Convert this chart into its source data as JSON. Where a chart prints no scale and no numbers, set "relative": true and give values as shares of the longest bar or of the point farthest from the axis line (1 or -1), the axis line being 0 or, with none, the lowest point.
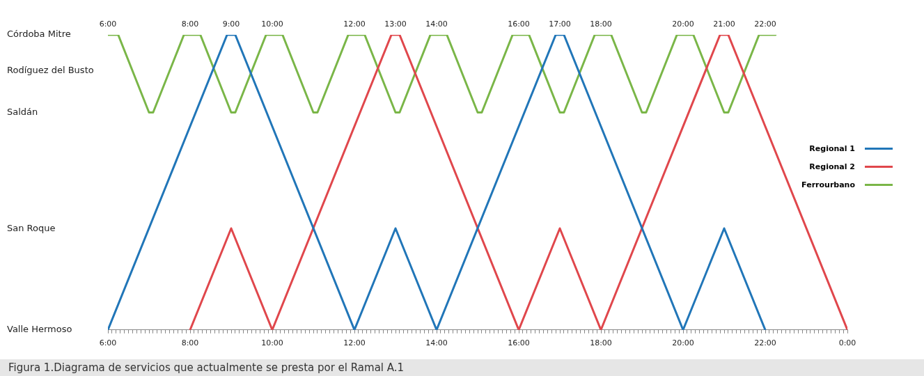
{
  "chart_data": {
    "type": "line",
    "marker": "none",
    "legend": "right",
    "grid": false,
    "relative": true,
    "xlim": [
      6,
      24
    ],
    "xticks": [
      {
        "value": 6,
        "label": "6:00"
      },
      {
        "value": 6.1,
        "label": null
      },
      {
        "value": 6.2,
        "label": null
      },
      {
        "value": 6.3,
        "label": null
      },
      {
        "value": 6.4,
        "label": null
      },
      {
        "value": 6.5,
        "label": null
      },
      {
        "value": 6.6,
        "label": null
      },
      {
        "value": 6.7,
        "label": null
      },
      {
        "value": 6.8,
        "label": null
      },
      {
        "value": 6.9,
        "label": null
      },
      {
        "value": 7,
        "label": null
      },
      {
        "value": 7.1,
        "label": null
      },
      {
        "value": 7.2,
        "label": null
      },
      {
        "value": 7.3,
        "label": null
      },
      {
        "value": 7.4,
        "label": null
      },
      {
        "value": 7.5,
        "label": null
      },
      {
        "value": 7.6,
        "label": null
      },
      {
        "value": 7.7,
        "label": null
      },
      {
        "value": 7.8,
        "label": null
      },
      {
        "value": 7.9,
        "label": null
      },
      {
        "value": 8,
        "label": "8:00"
      },
      {
        "value": 8.1,
        "label": null
      },
      {
        "value": 8.2,
        "label": null
      },
      {
        "value": 8.3,
        "label": null
      },
      {
        "value": 8.4,
        "label": null
      },
      {
        "value": 8.5,
        "label": null
      },
      {
        "value": 8.6,
        "label": null
      },
      {
        "value": 8.7,
        "label": null
      },
      {
        "value": 8.8,
        "label": null
      },
      {
        "value": 8.9,
        "label": null
      },
      {
        "value": 9,
        "label": null
      },
      {
        "value": 9.1,
        "label": null
      },
      {
        "value": 9.2,
        "label": null
      },
      {
        "value": 9.3,
        "label": null
      },
      {
        "value": 9.4,
        "label": null
      },
      {
        "value": 9.5,
        "label": null
      },
      {
        "value": 9.6,
        "label": null
      },
      {
        "value": 9.7,
        "label": null
      },
      {
        "value": 9.8,
        "label": null
      },
      {
        "value": 9.9,
        "label": null
      },
      {
        "value": 10,
        "label": "10:00"
      },
      {
        "value": 10.1,
        "label": null
      },
      {
        "value": 10.2,
        "label": null
      },
      {
        "value": 10.3,
        "label": null
      },
      {
        "value": 10.4,
        "label": null
      },
      {
        "value": 10.5,
        "label": null
      },
      {
        "value": 10.6,
        "label": null
      },
      {
        "value": 10.7,
        "label": null
      },
      {
        "value": 10.8,
        "label": null
      },
      {
        "value": 10.9,
        "label": null
      },
      {
        "value": 11,
        "label": null
      },
      {
        "value": 11.1,
        "label": null
      },
      {
        "value": 11.2,
        "label": null
      },
      {
        "value": 11.3,
        "label": null
      },
      {
        "value": 11.4,
        "label": null
      },
      {
        "value": 11.5,
        "label": null
      },
      {
        "value": 11.6,
        "label": null
      },
      {
        "value": 11.7,
        "label": null
      },
      {
        "value": 11.8,
        "label": null
      },
      {
        "value": 11.9,
        "label": null
      },
      {
        "value": 12,
        "label": "12:00"
      },
      {
        "value": 12.1,
        "label": null
      },
      {
        "value": 12.2,
        "label": null
      },
      {
        "value": 12.3,
        "label": null
      },
      {
        "value": 12.4,
        "label": null
      },
      {
        "value": 12.5,
        "label": null
      },
      {
        "value": 12.6,
        "label": null
      },
      {
        "value": 12.7,
        "label": null
      },
      {
        "value": 12.8,
        "label": null
      },
      {
        "value": 12.9,
        "label": null
      },
      {
        "value": 13,
        "label": null
      },
      {
        "value": 13.1,
        "label": null
      },
      {
        "value": 13.2,
        "label": null
      },
      {
        "value": 13.3,
        "label": null
      },
      {
        "value": 13.4,
        "label": null
      },
      {
        "value": 13.5,
        "label": null
      },
      {
        "value": 13.6,
        "label": null
      },
      {
        "value": 13.7,
        "label": null
      },
      {
        "value": 13.8,
        "label": null
      },
      {
        "value": 13.9,
        "label": null
      },
      {
        "value": 14,
        "label": "14:00"
      },
      {
        "value": 14.1,
        "label": null
      },
      {
        "value": 14.2,
        "label": null
      },
      {
        "value": 14.3,
        "label": null
      },
      {
        "value": 14.4,
        "label": null
      },
      {
        "value": 14.5,
        "label": null
      },
      {
        "value": 14.6,
        "label": null
      },
      {
        "value": 14.7,
        "label": null
      },
      {
        "value": 14.8,
        "label": null
      },
      {
        "value": 14.9,
        "label": null
      },
      {
        "value": 15,
        "label": null
      },
      {
        "value": 15.1,
        "label": null
      },
      {
        "value": 15.2,
        "label": null
      },
      {
        "value": 15.3,
        "label": null
      },
      {
        "value": 15.4,
        "label": null
      },
      {
        "value": 15.5,
        "label": null
      },
      {
        "value": 15.6,
        "label": null
      },
      {
        "value": 15.7,
        "label": null
      },
      {
        "value": 15.8,
        "label": null
      },
      {
        "value": 15.9,
        "label": null
      },
      {
        "value": 16,
        "label": "16:00"
      },
      {
        "value": 16.1,
        "label": null
      },
      {
        "value": 16.2,
        "label": null
      },
      {
        "value": 16.3,
        "label": null
      },
      {
        "value": 16.4,
        "label": null
      },
      {
        "value": 16.5,
        "label": null
      },
      {
        "value": 16.6,
        "label": null
      },
      {
        "value": 16.7,
        "label": null
      },
      {
        "value": 16.8,
        "label": null
      },
      {
        "value": 16.9,
        "label": null
      },
      {
        "value": 17,
        "label": null
      },
      {
        "value": 17.1,
        "label": null
      },
      {
        "value": 17.2,
        "label": null
      },
      {
        "value": 17.3,
        "label": null
      },
      {
        "value": 17.4,
        "label": null
      },
      {
        "value": 17.5,
        "label": null
      },
      {
        "value": 17.6,
        "label": null
      },
      {
        "value": 17.7,
        "label": null
      },
      {
        "value": 17.8,
        "label": null
      },
      {
        "value": 17.9,
        "label": null
      },
      {
        "value": 18,
        "label": "18:00"
      },
      {
        "value": 18.1,
        "label": null
      },
      {
        "value": 18.2,
        "label": null
      },
      {
        "value": 18.3,
        "label": null
      },
      {
        "value": 18.4,
        "label": null
      },
      {
        "value": 18.5,
        "label": null
      },
      {
        "value": 18.6,
        "label": null
      },
      {
        "value": 18.7,
        "label": null
      },
      {
        "value": 18.8,
        "label": null
      },
      {
        "value": 18.9,
        "label": null
      },
      {
        "value": 19,
        "label": null
      },
      {
        "value": 19.1,
        "label": null
      },
      {
        "value": 19.2,
        "label": null
      },
      {
        "value": 19.3,
        "label": null
      },
      {
        "value": 19.4,
        "label": null
      },
      {
        "value": 19.5,
        "label": null
      },
      {
        "value": 19.6,
        "label": null
      },
      {
        "value": 19.7,
        "label": null
      },
      {
        "value": 19.8,
        "label": null
      },
      {
        "value": 19.9,
        "label": null
      },
      {
        "value": 20,
        "label": "20:00"
      },
      {
        "value": 20.1,
        "label": null
      },
      {
        "value": 20.2,
        "label": null
      },
      {
        "value": 20.3,
        "label": null
      },
      {
        "value": 20.4,
        "label": null
      },
      {
        "value": 20.5,
        "label": null
      },
      {
        "value": 20.6,
        "label": null
      },
      {
        "value": 20.7,
        "label": null
      },
      {
        "value": 20.8,
        "label": null
      },
      {
        "value": 20.9,
        "label": null
      },
      {
        "value": 21,
        "label": null
      },
      {
        "value": 21.1,
        "label": null
      },
      {
        "value": 21.2,
        "label": null
      },
      {
        "value": 21.3,
        "label": null
      },
      {
        "value": 21.4,
        "label": null
      },
      {
        "value": 21.5,
        "label": null
      },
      {
        "value": 21.6,
        "label": null
      },
      {
        "value": 21.7,
        "label": null
      },
      {
        "value": 21.8,
        "label": null
      },
      {
        "value": 21.9,
        "label": null
      },
      {
        "value": 22,
        "label": "22:00"
      },
      {
        "value": 22.1,
        "label": null
      },
      {
        "value": 22.2,
        "label": null
      },
      {
        "value": 22.3,
        "label": null
      },
      {
        "value": 22.4,
        "label": null
      },
      {
        "value": 22.5,
        "label": null
      },
      {
        "value": 22.6,
        "label": null
      },
      {
        "value": 22.7,
        "label": null
      },
      {
        "value": 22.8,
        "label": null
      },
      {
        "value": 22.9,
        "label": null
      },
      {
        "value": 23,
        "label": null
      },
      {
        "value": 23.1,
        "label": null
      },
      {
        "value": 23.2,
        "label": null
      },
      {
        "value": 23.3,
        "label": null
      },
      {
        "value": 23.4,
        "label": null
      },
      {
        "value": 23.5,
        "label": null
      },
      {
        "value": 23.6,
        "label": null
      },
      {
        "value": 23.7,
        "label": null
      },
      {
        "value": 23.8,
        "label": null
      },
      {
        "value": 23.9,
        "label": null
      },
      {
        "value": 24,
        "label": "0:00"
      }
    ],
    "series": [
      {
        "name": "Regional 1",
        "color": "#2176b8",
        "x": [
          6,
          8.9,
          9.1,
          12,
          13,
          14,
          16.9,
          17.1,
          20,
          21,
          22
        ],
        "values": [
          0,
          1,
          1,
          0,
          0.344,
          0,
          1,
          1,
          0,
          0.344,
          0
        ]
      },
      {
        "name": "Regional 2",
        "color": "#e0474c",
        "x": [
          8,
          9,
          10,
          12.9,
          13.1,
          16,
          17,
          18,
          20.9,
          21.1,
          24
        ],
        "values": [
          0,
          0.344,
          0,
          1,
          1,
          0,
          0.344,
          0,
          1,
          1,
          0
        ]
      },
      {
        "name": "Ferrourbano",
        "color": "#7ab648",
        "x": [
          6,
          6.25,
          7,
          7.1,
          7.85,
          8.25,
          9,
          9.1,
          9.85,
          10.25,
          11,
          11.1,
          11.85,
          12.25,
          13,
          13.1,
          13.85,
          14.25,
          15,
          15.1,
          15.85,
          16.25,
          17,
          17.1,
          17.85,
          18.25,
          19,
          19.1,
          19.85,
          20.25,
          21,
          21.1,
          21.85,
          22.25
        ],
        "values": [
          1,
          1,
          0.737,
          0.737,
          1,
          1,
          0.737,
          0.737,
          1,
          1,
          0.737,
          0.737,
          1,
          1,
          0.737,
          0.737,
          1,
          1,
          0.737,
          0.737,
          1,
          1,
          0.737,
          0.737,
          1,
          1,
          0.737,
          0.737,
          1,
          1,
          0.737,
          0.737,
          1,
          1
        ]
      }
    ],
    "annotations": [
      "Córdoba Mitre",
      "Rodíguez del Busto",
      "Saldán",
      "San Roque",
      "Valle Hermoso",
      {
        "text": "6:00",
        "x": 6,
        "y": 1
      },
      {
        "text": "8:00",
        "x": 8,
        "y": 1
      },
      {
        "text": "9:00",
        "x": 9,
        "y": 1
      },
      {
        "text": "10:00",
        "x": 10,
        "y": 1
      },
      {
        "text": "12:00",
        "x": 12,
        "y": 1
      },
      {
        "text": "13:00",
        "x": 13,
        "y": 1
      },
      {
        "text": "14:00",
        "x": 14,
        "y": 1
      },
      {
        "text": "16:00",
        "x": 16,
        "y": 1
      },
      {
        "text": "17:00",
        "x": 17,
        "y": 1
      },
      {
        "text": "18:00",
        "x": 18,
        "y": 1
      },
      {
        "text": "20:00",
        "x": 20,
        "y": 1
      },
      {
        "text": "21:00",
        "x": 21,
        "y": 1
      },
      {
        "text": "22:00",
        "x": 22,
        "y": 1
      },
      "Figura 1.Diagrama de servicios que actualmente se presta por el Ramal A.1"
    ]
  }
}
